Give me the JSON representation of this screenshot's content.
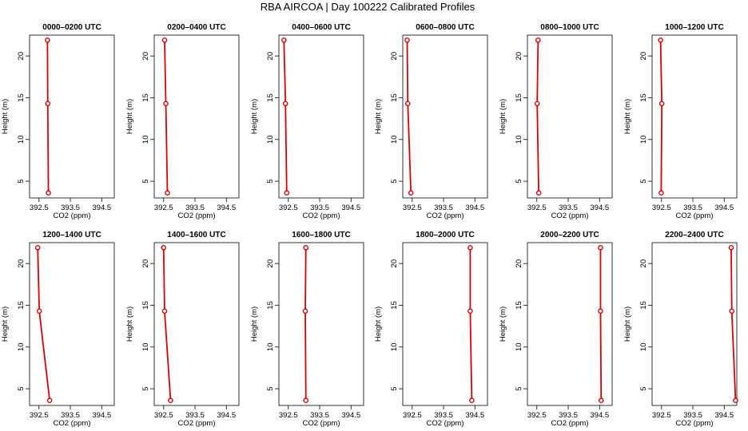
{
  "title": "RBA AIRCOA |  Day 100222  Calibrated Profiles",
  "chart_data": [
    {
      "type": "line",
      "title": "0000–0200 UTC",
      "xlabel": "CO2 (ppm)",
      "ylabel": "Height (m)",
      "xlim": [
        392.2,
        394.9
      ],
      "ylim": [
        3,
        22.5
      ],
      "xticks": [
        392.5,
        393.5,
        394.5
      ],
      "xtick_labels": [
        "392.5",
        "393.5",
        "394.5"
      ],
      "yticks": [
        5,
        10,
        15,
        20
      ],
      "ytick_labels": [
        "5",
        "10",
        "15",
        "20"
      ],
      "x": [
        392.77,
        392.78,
        392.8
      ],
      "y": [
        21.9,
        14.3,
        3.6
      ],
      "color": "#dd0000"
    },
    {
      "type": "line",
      "title": "0200–0400 UTC",
      "xlabel": "CO2 (ppm)",
      "ylabel": "Height (m)",
      "xlim": [
        392.2,
        394.9
      ],
      "ylim": [
        3,
        22.5
      ],
      "xticks": [
        392.5,
        393.5,
        394.5
      ],
      "xtick_labels": [
        "392.5",
        "393.5",
        "394.5"
      ],
      "yticks": [
        5,
        10,
        15,
        20
      ],
      "ytick_labels": [
        "5",
        "10",
        "15",
        "20"
      ],
      "x": [
        392.53,
        392.57,
        392.62
      ],
      "y": [
        21.9,
        14.3,
        3.6
      ],
      "color": "#dd0000"
    },
    {
      "type": "line",
      "title": "0400–0600 UTC",
      "xlabel": "CO2 (ppm)",
      "ylabel": "Height (m)",
      "xlim": [
        392.2,
        394.9
      ],
      "ylim": [
        3,
        22.5
      ],
      "xticks": [
        392.5,
        393.5,
        394.5
      ],
      "xtick_labels": [
        "392.5",
        "393.5",
        "394.5"
      ],
      "yticks": [
        5,
        10,
        15,
        20
      ],
      "ytick_labels": [
        "5",
        "10",
        "15",
        "20"
      ],
      "x": [
        392.36,
        392.41,
        392.45
      ],
      "y": [
        21.9,
        14.3,
        3.6
      ],
      "color": "#dd0000"
    },
    {
      "type": "line",
      "title": "0600–0800 UTC",
      "xlabel": "CO2 (ppm)",
      "ylabel": "Height (m)",
      "xlim": [
        392.2,
        394.9
      ],
      "ylim": [
        3,
        22.5
      ],
      "xticks": [
        392.5,
        393.5,
        394.5
      ],
      "xtick_labels": [
        "392.5",
        "393.5",
        "394.5"
      ],
      "yticks": [
        5,
        10,
        15,
        20
      ],
      "ytick_labels": [
        "5",
        "10",
        "15",
        "20"
      ],
      "x": [
        392.34,
        392.36,
        392.46
      ],
      "y": [
        21.9,
        14.3,
        3.6
      ],
      "color": "#dd0000"
    },
    {
      "type": "line",
      "title": "0800–1000 UTC",
      "xlabel": "CO2 (ppm)",
      "ylabel": "Height (m)",
      "xlim": [
        392.2,
        394.9
      ],
      "ylim": [
        3,
        22.5
      ],
      "xticks": [
        392.5,
        393.5,
        394.5
      ],
      "xtick_labels": [
        "392.5",
        "393.5",
        "394.5"
      ],
      "yticks": [
        5,
        10,
        15,
        20
      ],
      "ytick_labels": [
        "5",
        "10",
        "15",
        "20"
      ],
      "x": [
        392.54,
        392.51,
        392.56
      ],
      "y": [
        21.9,
        14.3,
        3.6
      ],
      "color": "#dd0000"
    },
    {
      "type": "line",
      "title": "1000–1200 UTC",
      "xlabel": "CO2 (ppm)",
      "ylabel": "Height (m)",
      "xlim": [
        392.2,
        394.9
      ],
      "ylim": [
        3,
        22.5
      ],
      "xticks": [
        392.5,
        393.5,
        394.5
      ],
      "xtick_labels": [
        "392.5",
        "393.5",
        "394.5"
      ],
      "yticks": [
        5,
        10,
        15,
        20
      ],
      "ytick_labels": [
        "5",
        "10",
        "15",
        "20"
      ],
      "x": [
        392.47,
        392.51,
        392.49
      ],
      "y": [
        21.9,
        14.3,
        3.6
      ],
      "color": "#dd0000"
    },
    {
      "type": "line",
      "title": "1200–1400 UTC",
      "xlabel": "CO2 (ppm)",
      "ylabel": "Height (m)",
      "xlim": [
        392.2,
        394.9
      ],
      "ylim": [
        3,
        22.5
      ],
      "xticks": [
        392.5,
        393.5,
        394.5
      ],
      "xtick_labels": [
        "392.5",
        "393.5",
        "394.5"
      ],
      "yticks": [
        5,
        10,
        15,
        20
      ],
      "ytick_labels": [
        "5",
        "10",
        "15",
        "20"
      ],
      "x": [
        392.46,
        392.51,
        392.84
      ],
      "y": [
        21.9,
        14.3,
        3.6
      ],
      "color": "#dd0000"
    },
    {
      "type": "line",
      "title": "1400–1600 UTC",
      "xlabel": "CO2 (ppm)",
      "ylabel": "Height (m)",
      "xlim": [
        392.2,
        394.9
      ],
      "ylim": [
        3,
        22.5
      ],
      "xticks": [
        392.5,
        393.5,
        394.5
      ],
      "xtick_labels": [
        "392.5",
        "393.5",
        "394.5"
      ],
      "yticks": [
        5,
        10,
        15,
        20
      ],
      "ytick_labels": [
        "5",
        "10",
        "15",
        "20"
      ],
      "x": [
        392.5,
        392.53,
        392.72
      ],
      "y": [
        21.9,
        14.3,
        3.6
      ],
      "color": "#dd0000"
    },
    {
      "type": "line",
      "title": "1600–1800 UTC",
      "xlabel": "CO2 (ppm)",
      "ylabel": "Height (m)",
      "xlim": [
        392.2,
        394.9
      ],
      "ylim": [
        3,
        22.5
      ],
      "xticks": [
        392.5,
        393.5,
        394.5
      ],
      "xtick_labels": [
        "392.5",
        "393.5",
        "394.5"
      ],
      "yticks": [
        5,
        10,
        15,
        20
      ],
      "ytick_labels": [
        "5",
        "10",
        "15",
        "20"
      ],
      "x": [
        393.06,
        393.04,
        393.06
      ],
      "y": [
        21.9,
        14.3,
        3.6
      ],
      "color": "#dd0000"
    },
    {
      "type": "line",
      "title": "1800–2000 UTC",
      "xlabel": "CO2 (ppm)",
      "ylabel": "Height (m)",
      "xlim": [
        392.2,
        394.9
      ],
      "ylim": [
        3,
        22.5
      ],
      "xticks": [
        392.5,
        393.5,
        394.5
      ],
      "xtick_labels": [
        "392.5",
        "393.5",
        "394.5"
      ],
      "yticks": [
        5,
        10,
        15,
        20
      ],
      "ytick_labels": [
        "5",
        "10",
        "15",
        "20"
      ],
      "x": [
        394.35,
        394.35,
        394.4
      ],
      "y": [
        21.9,
        14.3,
        3.6
      ],
      "color": "#dd0000"
    },
    {
      "type": "line",
      "title": "2000–2200 UTC",
      "xlabel": "CO2 (ppm)",
      "ylabel": "Height (m)",
      "xlim": [
        392.2,
        394.9
      ],
      "ylim": [
        3,
        22.5
      ],
      "xticks": [
        392.5,
        393.5,
        394.5
      ],
      "xtick_labels": [
        "392.5",
        "393.5",
        "394.5"
      ],
      "yticks": [
        5,
        10,
        15,
        20
      ],
      "ytick_labels": [
        "5",
        "10",
        "15",
        "20"
      ],
      "x": [
        394.53,
        394.53,
        394.55
      ],
      "y": [
        21.9,
        14.3,
        3.6
      ],
      "color": "#dd0000"
    },
    {
      "type": "line",
      "title": "2200–2400 UTC",
      "xlabel": "CO2 (ppm)",
      "ylabel": "Height (m)",
      "xlim": [
        392.2,
        394.9
      ],
      "ylim": [
        3,
        22.5
      ],
      "xticks": [
        392.5,
        393.5,
        394.5
      ],
      "xtick_labels": [
        "392.5",
        "393.5",
        "394.5"
      ],
      "yticks": [
        5,
        10,
        15,
        20
      ],
      "ytick_labels": [
        "5",
        "10",
        "15",
        "20"
      ],
      "x": [
        394.72,
        394.74,
        394.86
      ],
      "y": [
        21.9,
        14.3,
        3.6
      ],
      "color": "#dd0000"
    }
  ]
}
